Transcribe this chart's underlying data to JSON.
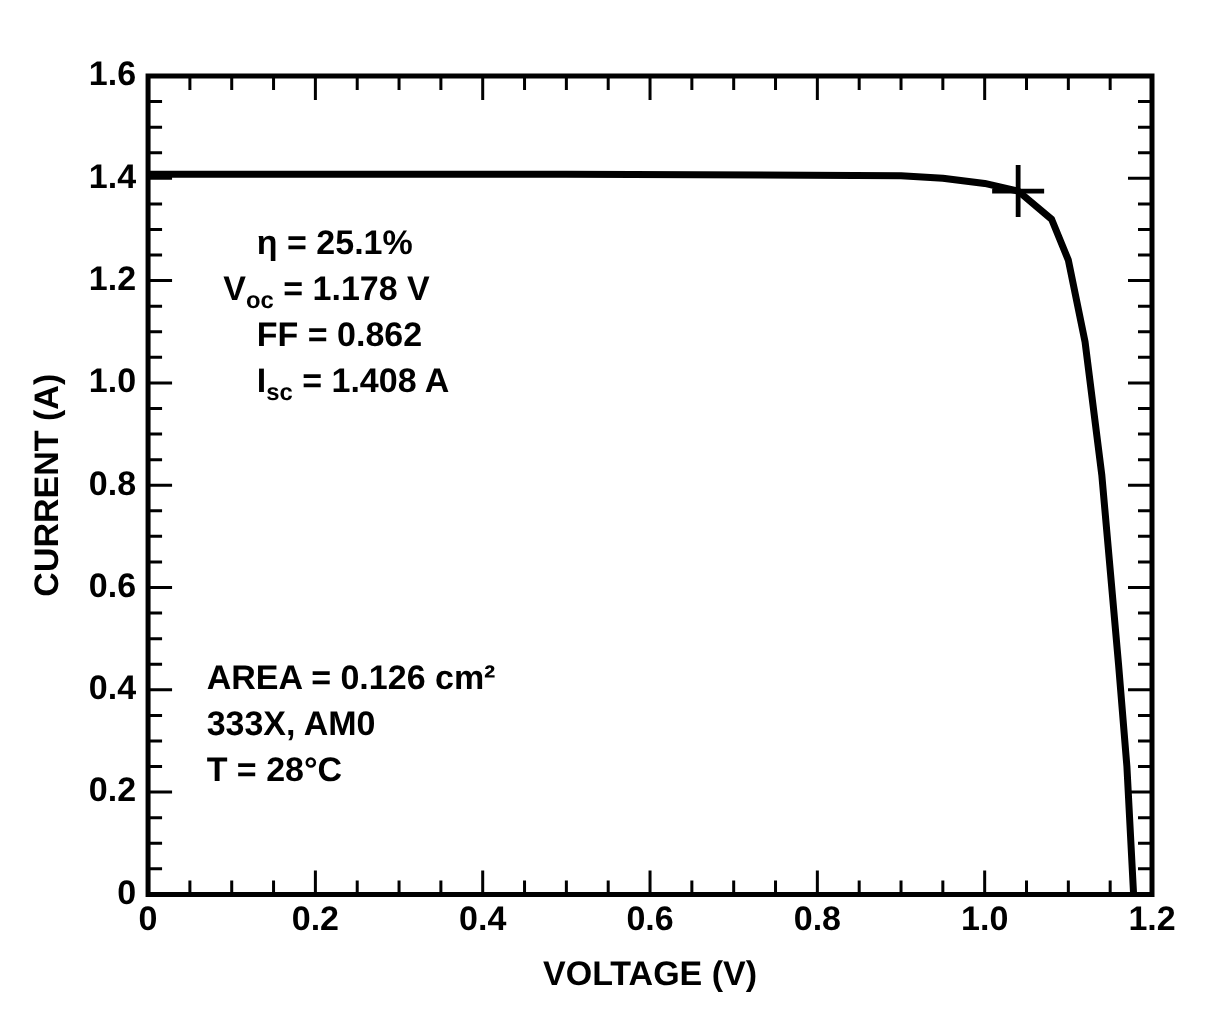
{
  "chart_data": {
    "type": "line",
    "xlabel": "VOLTAGE (V)",
    "ylabel": "CURRENT (A)",
    "series": [
      {
        "type": "line",
        "color": "#000000",
        "x": [
          0,
          0.5,
          0.9,
          0.95,
          1.0,
          1.04,
          1.08,
          1.1,
          1.12,
          1.14,
          1.16,
          1.17,
          1.178
        ],
        "values": [
          1.408,
          1.408,
          1.405,
          1.4,
          1.39,
          1.375,
          1.32,
          1.24,
          1.08,
          0.82,
          0.45,
          0.25,
          0
        ]
      },
      {
        "type": "scatter",
        "color": "#000000",
        "marker": "cross",
        "x": [
          1.04
        ],
        "values": [
          1.375
        ]
      }
    ],
    "xlim": [
      0,
      1.2
    ],
    "xticks": [
      0,
      {
        "value": 0.05,
        "label": null
      },
      {
        "value": 0.1,
        "label": null
      },
      {
        "value": 0.15,
        "label": null
      },
      0.2,
      {
        "value": 0.25,
        "label": null
      },
      {
        "value": 0.3,
        "label": null
      },
      {
        "value": 0.35,
        "label": null
      },
      0.4,
      {
        "value": 0.45,
        "label": null
      },
      {
        "value": 0.5,
        "label": null
      },
      {
        "value": 0.55,
        "label": null
      },
      0.6,
      {
        "value": 0.65,
        "label": null
      },
      {
        "value": 0.7,
        "label": null
      },
      {
        "value": 0.75,
        "label": null
      },
      0.8,
      {
        "value": 0.85,
        "label": null
      },
      {
        "value": 0.9,
        "label": null
      },
      {
        "value": 0.95,
        "label": null
      },
      {
        "value": 1,
        "label": "1.0"
      },
      {
        "value": 1.05,
        "label": null
      },
      {
        "value": 1.1,
        "label": null
      },
      {
        "value": 1.15,
        "label": null
      },
      1.2
    ],
    "ylim": [
      0,
      1.6
    ],
    "yticks": [
      0,
      {
        "value": 0.05,
        "label": null
      },
      {
        "value": 0.1,
        "label": null
      },
      {
        "value": 0.15,
        "label": null
      },
      0.2,
      {
        "value": 0.25,
        "label": null
      },
      {
        "value": 0.3,
        "label": null
      },
      {
        "value": 0.35,
        "label": null
      },
      0.4,
      {
        "value": 0.45,
        "label": null
      },
      {
        "value": 0.5,
        "label": null
      },
      {
        "value": 0.55,
        "label": null
      },
      0.6,
      {
        "value": 0.65,
        "label": null
      },
      {
        "value": 0.7,
        "label": null
      },
      {
        "value": 0.75,
        "label": null
      },
      0.8,
      {
        "value": 0.85,
        "label": null
      },
      {
        "value": 0.9,
        "label": null
      },
      {
        "value": 0.95,
        "label": null
      },
      {
        "value": 1,
        "label": "1.0"
      },
      {
        "value": 1.05,
        "label": null
      },
      {
        "value": 1.1,
        "label": null
      },
      {
        "value": 1.15,
        "label": null
      },
      1.2,
      {
        "value": 1.25,
        "label": null
      },
      {
        "value": 1.3,
        "label": null
      },
      {
        "value": 1.35,
        "label": null
      },
      1.4,
      {
        "value": 1.45,
        "label": null
      },
      {
        "value": 1.5,
        "label": null
      },
      {
        "value": 1.55,
        "label": null
      },
      1.6
    ],
    "grid": false,
    "legend": false,
    "annotations": [
      "η = 25.1%",
      "V$_{oc}$ = 1.178 V",
      "FF = 0.862",
      "I$_{sc}$ = 1.408 A",
      "AREA = 0.126 cm²",
      "333X, AM0",
      "T = 28°C"
    ]
  }
}
